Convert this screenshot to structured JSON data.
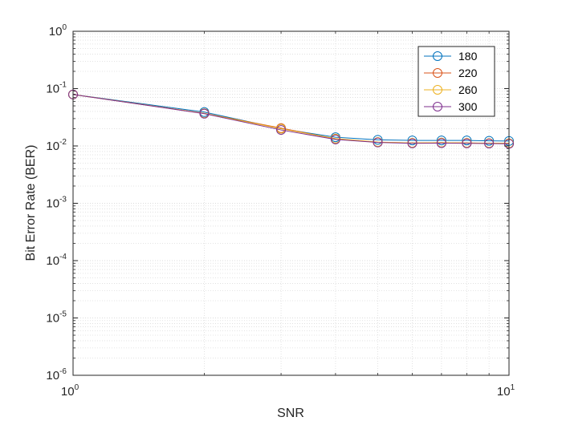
{
  "chart_data": {
    "type": "line",
    "xlabel": "SNR",
    "ylabel": "Bit Error Rate (BER)",
    "xscale": "log",
    "yscale": "log",
    "xlim": [
      1,
      10
    ],
    "ylim": [
      1e-06,
      1
    ],
    "x_ticks": [
      {
        "value": 1,
        "base": "10",
        "exp": "0"
      },
      {
        "value": 10,
        "base": "10",
        "exp": "1"
      }
    ],
    "y_ticks": [
      {
        "value": 1,
        "base": "10",
        "exp": "0"
      },
      {
        "value": 0.1,
        "base": "10",
        "exp": "-1"
      },
      {
        "value": 0.01,
        "base": "10",
        "exp": "-2"
      },
      {
        "value": 0.001,
        "base": "10",
        "exp": "-3"
      },
      {
        "value": 0.0001,
        "base": "10",
        "exp": "-4"
      },
      {
        "value": 1e-05,
        "base": "10",
        "exp": "-5"
      },
      {
        "value": 1e-06,
        "base": "10",
        "exp": "-6"
      }
    ],
    "grid": true,
    "minor_grid": true,
    "legend_position": "top-right",
    "marker": "circle",
    "x": [
      1,
      2,
      3,
      4,
      5,
      6,
      7,
      8,
      9,
      10
    ],
    "series": [
      {
        "name": "180",
        "color": "#0072BD",
        "values": [
          0.079,
          0.039,
          0.02,
          0.0142,
          0.0128,
          0.0125,
          0.0125,
          0.0125,
          0.0123,
          0.0122
        ]
      },
      {
        "name": "220",
        "color": "#D95319",
        "values": [
          0.079,
          0.037,
          0.0205,
          0.0133,
          0.0116,
          0.0113,
          0.0114,
          0.0113,
          0.0111,
          0.0111
        ]
      },
      {
        "name": "260",
        "color": "#EDB120",
        "values": [
          0.079,
          0.037,
          0.02,
          0.0134,
          0.0117,
          0.0113,
          0.0114,
          0.0113,
          0.0112,
          0.0111
        ]
      },
      {
        "name": "300",
        "color": "#7E2F8E",
        "values": [
          0.079,
          0.0365,
          0.019,
          0.013,
          0.0115,
          0.0111,
          0.0112,
          0.0111,
          0.011,
          0.0109
        ]
      }
    ]
  }
}
